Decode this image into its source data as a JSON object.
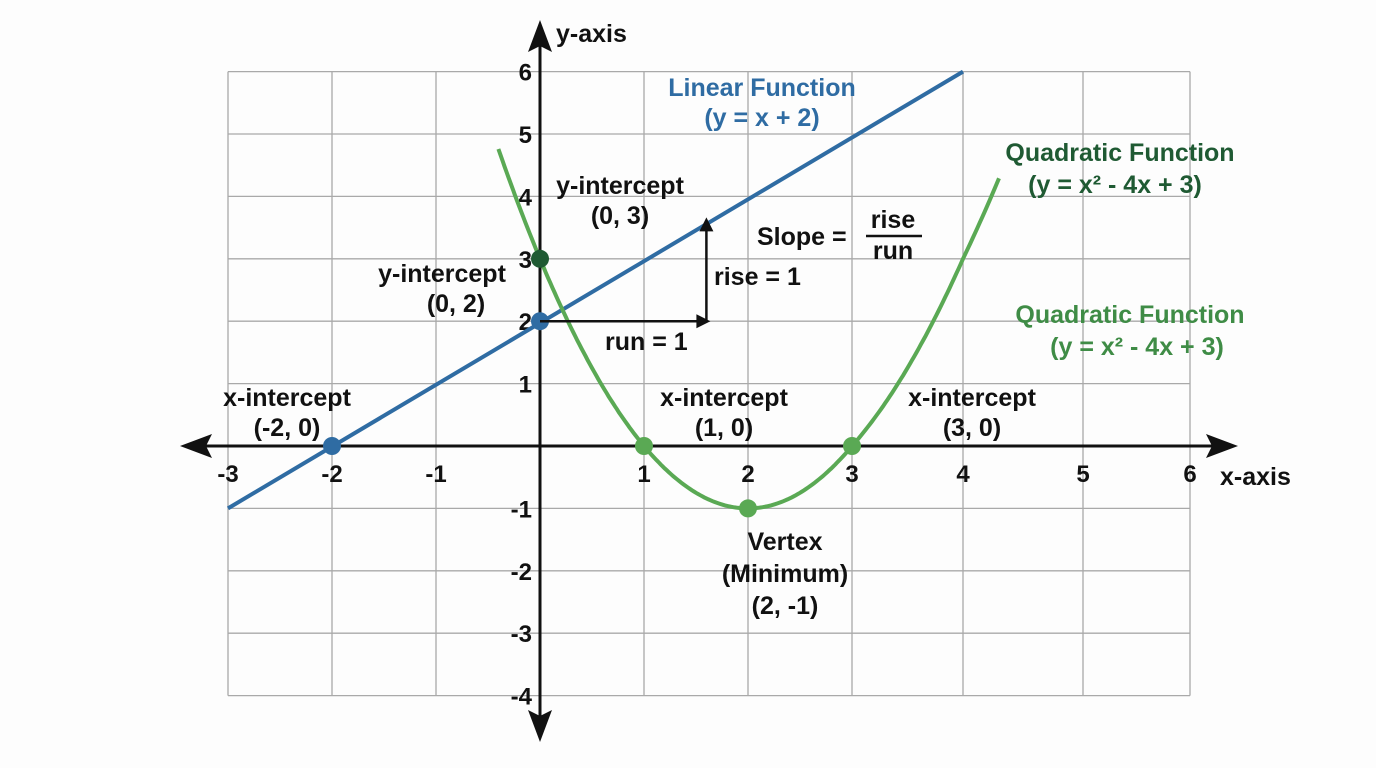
{
  "chart_data": {
    "type": "line",
    "xlabel": "x-axis",
    "ylabel": "y-axis",
    "xlim": [
      -3,
      6
    ],
    "ylim": [
      -4,
      6
    ],
    "grid": true,
    "x_ticks": [
      "-3",
      "-2",
      "-1",
      "1",
      "2",
      "3",
      "4",
      "5",
      "6"
    ],
    "y_ticks": [
      "6",
      "5",
      "4",
      "3",
      "2",
      "1",
      "-1",
      "-2",
      "-3",
      "-4"
    ],
    "colors": {
      "linear": "#2f6ca3",
      "quadratic": "#5aa954",
      "quadratic_label_dark": "#1f5a33",
      "quadratic_label_light": "#3f8c46"
    },
    "series": [
      {
        "name": "Linear Function",
        "equation": "(y = x + 2)",
        "slope": 1,
        "intercept": 2,
        "x_range": [
          -3,
          4
        ]
      },
      {
        "name": "Quadratic Function",
        "equation": "(y = x² - 4x + 3)",
        "coefficients": [
          1,
          -4,
          3
        ],
        "x_range": [
          -0.4,
          4.3
        ]
      }
    ],
    "second_quadratic_label": {
      "name": "Quadratic Function",
      "equation": "(y = x² - 4x + 3)"
    },
    "points": [
      {
        "x": -2,
        "y": 0,
        "series": "linear",
        "title": "x-intercept",
        "coord": "(-2, 0)"
      },
      {
        "x": 0,
        "y": 2,
        "series": "linear",
        "title": "y-intercept",
        "coord": "(0, 2)"
      },
      {
        "x": 0,
        "y": 3,
        "series": "quadratic",
        "title": "y-intercept",
        "coord": "(0, 3)"
      },
      {
        "x": 1,
        "y": 0,
        "series": "quadratic",
        "title": "x-intercept",
        "coord": "(1, 0)"
      },
      {
        "x": 3,
        "y": 0,
        "series": "quadratic",
        "title": "x-intercept",
        "coord": "(3, 0)"
      },
      {
        "x": 2,
        "y": -1,
        "series": "quadratic",
        "title": "Vertex",
        "subtitle": "(Minimum)",
        "coord": "(2, -1)"
      }
    ],
    "slope_annotation": {
      "label": "Slope =",
      "numerator": "rise",
      "denominator": "run",
      "rise_label": "rise = 1",
      "run_label": "run = 1"
    }
  }
}
